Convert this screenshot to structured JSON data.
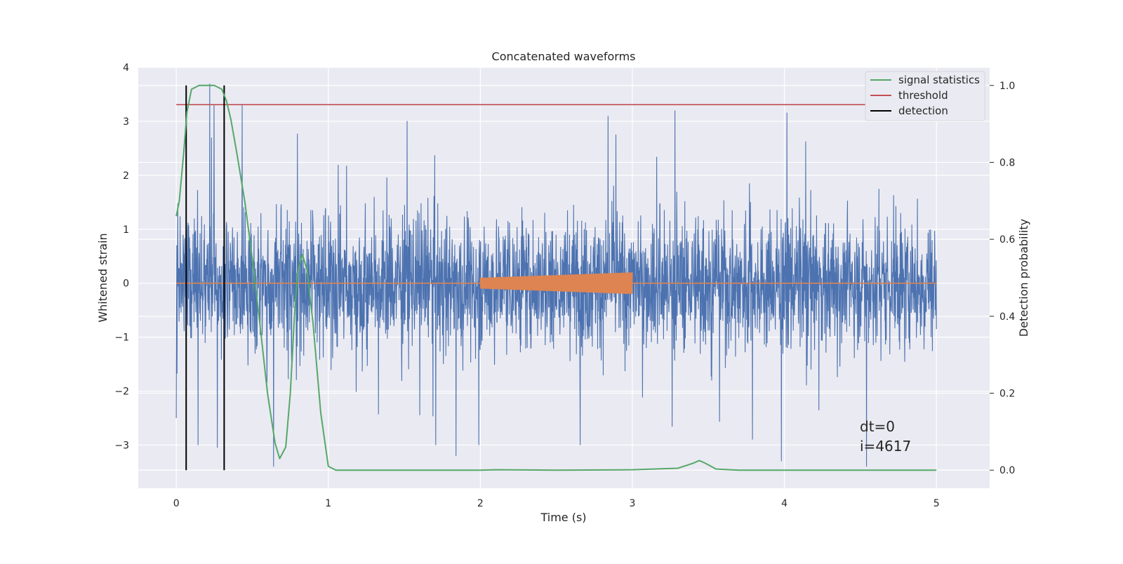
{
  "chart_data": {
    "type": "line",
    "title": "Concatenated waveforms",
    "xlabel": "Time (s)",
    "ylabel": "Whitened strain",
    "y2label": "Detection probability",
    "xlim": [
      -0.25,
      5.35
    ],
    "ylim": [
      -3.8,
      4.0
    ],
    "y2lim": [
      -0.047,
      1.047
    ],
    "xticks": [
      0,
      1,
      2,
      3,
      4,
      5
    ],
    "xtick_labels": [
      "0",
      "1",
      "2",
      "3",
      "4",
      "5"
    ],
    "yticks": [
      -3,
      -2,
      -1,
      0,
      1,
      2,
      3,
      4
    ],
    "ytick_labels": [
      "−3",
      "−2",
      "−1",
      "0",
      "1",
      "2",
      "3",
      "4"
    ],
    "y2ticks": [
      0.0,
      0.2,
      0.4,
      0.6,
      0.8,
      1.0
    ],
    "y2tick_labels": [
      "0.0",
      "0.2",
      "0.4",
      "0.6",
      "0.8",
      "1.0"
    ],
    "grid": true,
    "legend_placement": "top-right",
    "legend": [
      {
        "label": "signal statistics",
        "color": "#55a868"
      },
      {
        "label": "threshold",
        "color": "#c44e52"
      },
      {
        "label": "detection",
        "color": "#000000"
      }
    ],
    "annotations": [
      "dt=0",
      "i=4617"
    ],
    "series": [
      {
        "name": "noise",
        "axis": "left",
        "color": "#4c72b0",
        "x_range": [
          0,
          5
        ],
        "typical_envelope": [
          -2.4,
          2.8
        ],
        "peaks": [
          {
            "x": 0.0,
            "y": -2.5
          },
          {
            "x": 0.22,
            "y": 3.7
          },
          {
            "x": 0.27,
            "y": -3.05
          },
          {
            "x": 0.64,
            "y": -3.4
          },
          {
            "x": 1.84,
            "y": -3.2
          },
          {
            "x": 2.84,
            "y": 3.1
          },
          {
            "x": 3.28,
            "y": 3.2
          },
          {
            "x": 3.98,
            "y": -3.3
          },
          {
            "x": 4.54,
            "y": -3.4
          },
          {
            "x": 5.0,
            "y": -0.85
          }
        ]
      },
      {
        "name": "injected waveform",
        "axis": "left",
        "color": "#dd8452",
        "x": [
          0.0,
          2.0,
          2.0,
          3.0,
          3.0,
          5.0
        ],
        "amplitude": [
          0.0,
          0.0,
          0.1,
          0.2,
          0.0,
          0.0
        ]
      },
      {
        "name": "signal statistics",
        "axis": "right",
        "color": "#55a868",
        "x": [
          0.0,
          0.02,
          0.05,
          0.07,
          0.1,
          0.15,
          0.2,
          0.25,
          0.3,
          0.33,
          0.36,
          0.4,
          0.45,
          0.5,
          0.55,
          0.6,
          0.65,
          0.68,
          0.72,
          0.75,
          0.78,
          0.8,
          0.83,
          0.86,
          0.9,
          0.95,
          1.0,
          1.05,
          1.2,
          1.5,
          2.0,
          2.1,
          2.5,
          3.0,
          3.3,
          3.4,
          3.44,
          3.48,
          3.55,
          3.7,
          4.0,
          4.5,
          5.0
        ],
        "y": [
          0.66,
          0.7,
          0.83,
          0.93,
          0.99,
          1.0,
          1.0,
          1.0,
          0.99,
          0.96,
          0.91,
          0.82,
          0.7,
          0.55,
          0.38,
          0.2,
          0.07,
          0.03,
          0.06,
          0.2,
          0.42,
          0.52,
          0.56,
          0.52,
          0.38,
          0.15,
          0.01,
          0.0,
          0.0,
          0.0,
          0.0,
          0.001,
          0.0,
          0.001,
          0.005,
          0.018,
          0.025,
          0.018,
          0.003,
          0.0,
          0.0,
          0.0,
          0.0
        ]
      },
      {
        "name": "threshold",
        "axis": "right",
        "color": "#c44e52",
        "x": [
          0.0,
          5.0
        ],
        "y": [
          0.95,
          0.95
        ]
      },
      {
        "name": "detection",
        "axis": "right",
        "color": "#000000",
        "x": [
          0.065,
          0.315
        ],
        "y_range": [
          0.0,
          1.0
        ]
      }
    ]
  }
}
